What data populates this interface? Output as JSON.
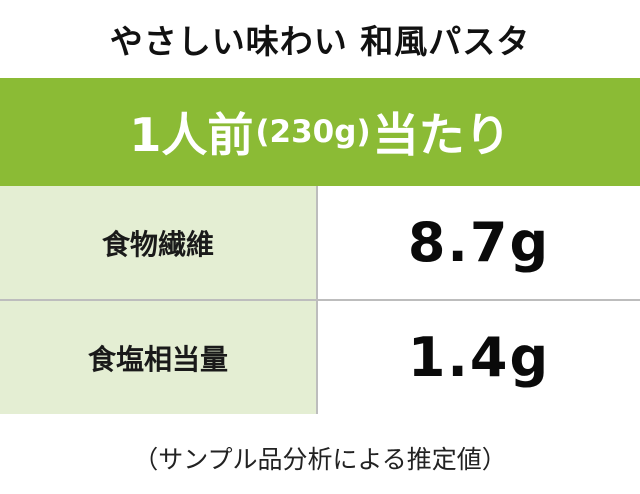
{
  "title": "やさしい味わい 和風パスタ",
  "banner": {
    "lead": "1人前",
    "serving": "(230g)",
    "tail": "当たり",
    "background_color": "#8bbb35"
  },
  "nutrition": [
    {
      "label": "食物繊維",
      "value": "8.7g"
    },
    {
      "label": "食塩相当量",
      "value": "1.4g"
    }
  ],
  "note": "（サンプル品分析による推定値）",
  "colors": {
    "label_cell": "#e4eed3",
    "divider": "#bdbdbd"
  }
}
